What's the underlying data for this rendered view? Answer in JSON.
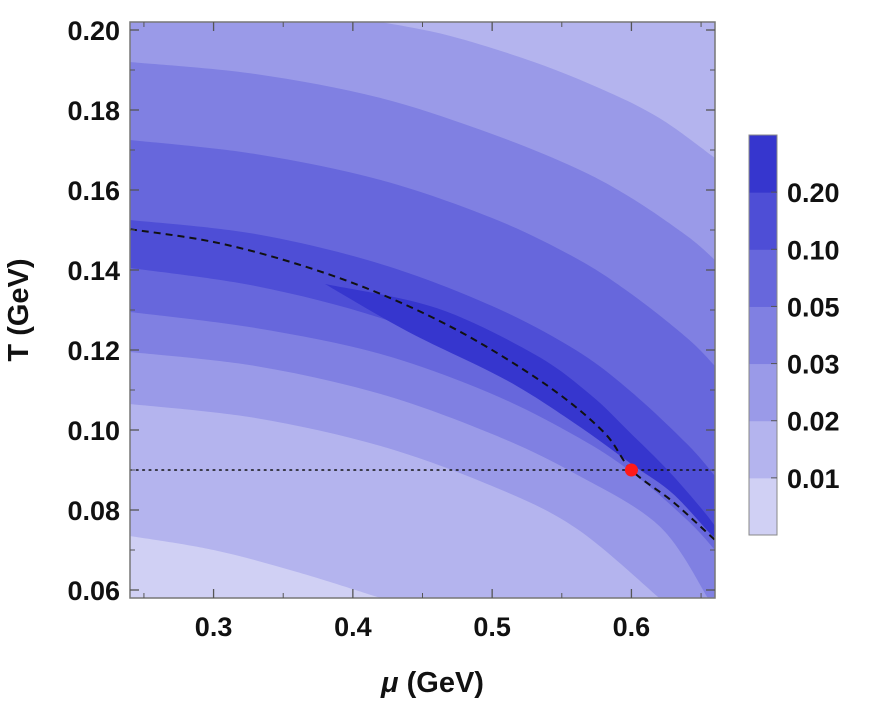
{
  "chart_data": {
    "type": "contour",
    "x_axis": {
      "label_symbol": "μ",
      "label_unit": " (GeV)",
      "range": [
        0.24,
        0.66
      ],
      "ticks": [
        0.3,
        0.4,
        0.5,
        0.6
      ],
      "tick_labels": [
        "0.3",
        "0.4",
        "0.5",
        "0.6"
      ]
    },
    "y_axis": {
      "label": "T (GeV)",
      "range": [
        0.058,
        0.202
      ],
      "ticks": [
        0.06,
        0.08,
        0.1,
        0.12,
        0.14,
        0.16,
        0.18,
        0.2
      ],
      "tick_labels": [
        "0.06",
        "0.08",
        "0.10",
        "0.12",
        "0.14",
        "0.16",
        "0.18",
        "0.20"
      ]
    },
    "legend": {
      "placement": "right",
      "levels": [
        "0.01",
        "0.02",
        "0.03",
        "0.05",
        "0.10",
        "0.20"
      ],
      "colors": [
        "#d0d0f4",
        "#b4b4ee",
        "#9a9ae8",
        "#8080e2",
        "#6767dc",
        "#4e4ed6",
        "#3636ce"
      ]
    },
    "contour_bands": [
      {
        "level_index": 0,
        "boundary": [
          [
            0.24,
            0.0735
          ],
          [
            0.3,
            0.07
          ],
          [
            0.36,
            0.0645
          ],
          [
            0.42,
            0.058
          ]
        ]
      },
      {
        "level_index": 1,
        "boundary": [
          [
            0.24,
            0.1065
          ],
          [
            0.33,
            0.103
          ],
          [
            0.42,
            0.096
          ],
          [
            0.5,
            0.086
          ],
          [
            0.56,
            0.0755
          ],
          [
            0.62,
            0.058
          ]
        ]
      },
      {
        "level_index": 2,
        "boundary": [
          [
            0.24,
            0.1195
          ],
          [
            0.33,
            0.116
          ],
          [
            0.42,
            0.109
          ],
          [
            0.5,
            0.099
          ],
          [
            0.56,
            0.089
          ],
          [
            0.62,
            0.076
          ],
          [
            0.655,
            0.058
          ]
        ]
      },
      {
        "level_index": 3,
        "boundary": [
          [
            0.24,
            0.1295
          ],
          [
            0.33,
            0.1255
          ],
          [
            0.42,
            0.119
          ],
          [
            0.5,
            0.109
          ],
          [
            0.56,
            0.0985
          ],
          [
            0.6,
            0.0895
          ],
          [
            0.64,
            0.0775
          ],
          [
            0.66,
            0.07
          ]
        ]
      },
      {
        "level_index": 4,
        "boundary": [
          [
            0.24,
            0.1405
          ],
          [
            0.33,
            0.136
          ],
          [
            0.42,
            0.128
          ],
          [
            0.5,
            0.117
          ],
          [
            0.56,
            0.1055
          ],
          [
            0.6,
            0.0955
          ],
          [
            0.64,
            0.083
          ],
          [
            0.66,
            0.0755
          ]
        ]
      },
      {
        "level_index": 5,
        "boundary": [
          [
            0.38,
            0.1365
          ],
          [
            0.46,
            0.1305
          ],
          [
            0.53,
            0.119
          ],
          [
            0.57,
            0.109
          ],
          [
            0.6,
            0.099
          ],
          [
            0.63,
            0.0885
          ],
          [
            0.66,
            0.076
          ],
          [
            0.66,
            0.073
          ],
          [
            0.63,
            0.084
          ],
          [
            0.6,
            0.0915
          ],
          [
            0.56,
            0.1015
          ],
          [
            0.51,
            0.1125
          ],
          [
            0.44,
            0.1245
          ],
          [
            0.38,
            0.1365
          ]
        ]
      }
    ],
    "outer_band_edges": {
      "upper_4": [
        [
          0.24,
          0.1525
        ],
        [
          0.33,
          0.149
        ],
        [
          0.42,
          0.1415
        ],
        [
          0.5,
          0.131
        ],
        [
          0.56,
          0.12
        ],
        [
          0.6,
          0.1095
        ],
        [
          0.64,
          0.0965
        ],
        [
          0.66,
          0.0885
        ]
      ],
      "upper_3": [
        [
          0.24,
          0.1725
        ],
        [
          0.33,
          0.169
        ],
        [
          0.42,
          0.1625
        ],
        [
          0.5,
          0.153
        ],
        [
          0.56,
          0.143
        ],
        [
          0.6,
          0.134
        ],
        [
          0.64,
          0.123
        ],
        [
          0.66,
          0.116
        ]
      ],
      "upper_2": [
        [
          0.24,
          0.192
        ],
        [
          0.33,
          0.189
        ],
        [
          0.42,
          0.183
        ],
        [
          0.5,
          0.174
        ],
        [
          0.56,
          0.1655
        ],
        [
          0.6,
          0.158
        ],
        [
          0.64,
          0.1485
        ],
        [
          0.66,
          0.1425
        ]
      ],
      "upper_1": [
        [
          0.42,
          0.202
        ],
        [
          0.47,
          0.1985
        ],
        [
          0.53,
          0.192
        ],
        [
          0.58,
          0.185
        ],
        [
          0.62,
          0.178
        ],
        [
          0.66,
          0.168
        ]
      ]
    },
    "dashed_curve": [
      [
        0.24,
        0.1502
      ],
      [
        0.3,
        0.147
      ],
      [
        0.36,
        0.1415
      ],
      [
        0.42,
        0.134
      ],
      [
        0.48,
        0.124
      ],
      [
        0.54,
        0.111
      ],
      [
        0.58,
        0.0995
      ],
      [
        0.6,
        0.09
      ],
      [
        0.63,
        0.082
      ],
      [
        0.66,
        0.0725
      ]
    ],
    "dotted_line_T": 0.09,
    "critical_point": {
      "mu": 0.6,
      "T": 0.09,
      "color": "#ff1a1a"
    }
  }
}
